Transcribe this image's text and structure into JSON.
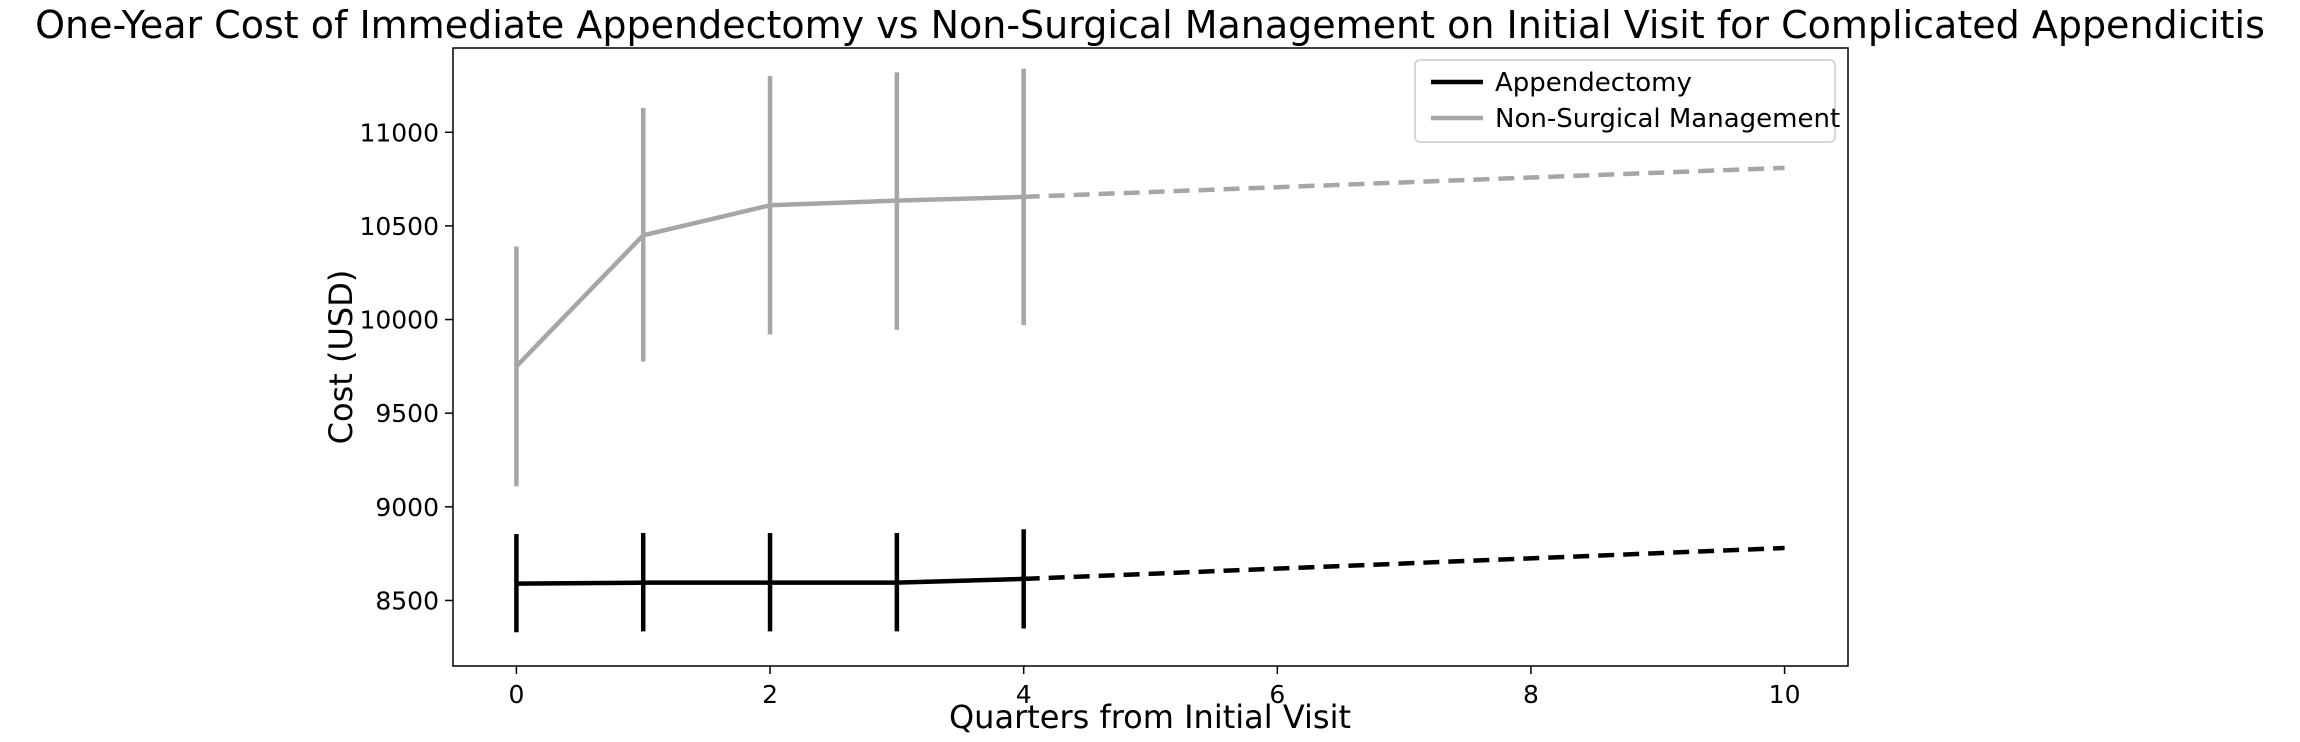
{
  "chart_data": {
    "type": "line",
    "title": "One-Year Cost of Immediate Appendectomy vs Non-Surgical Management on Initial Visit for Complicated Appendicitis",
    "xlabel": "Quarters from Initial Visit",
    "ylabel": "Cost (USD)",
    "xlim": [
      -0.5,
      10.5
    ],
    "ylim": [
      8150,
      11450
    ],
    "x_ticks": [
      0,
      2,
      4,
      6,
      8,
      10
    ],
    "y_ticks": [
      8500,
      9000,
      9500,
      10000,
      10500,
      11000
    ],
    "grid": false,
    "legend_position": "top-right",
    "series": [
      {
        "name": "Appendectomy",
        "color": "#000000",
        "x": [
          0,
          1,
          2,
          3,
          4
        ],
        "y": [
          8590,
          8595,
          8595,
          8595,
          8615
        ],
        "error_low": [
          8330,
          8335,
          8335,
          8335,
          8350
        ],
        "error_high": [
          8855,
          8860,
          8860,
          8860,
          8880
        ],
        "projection": {
          "style": "dashed",
          "x": [
            4,
            10
          ],
          "y": [
            8615,
            8780
          ]
        }
      },
      {
        "name": "Non-Surgical Management",
        "color": "#a6a6a6",
        "x": [
          0,
          1,
          2,
          3,
          4
        ],
        "y": [
          9750,
          10450,
          10610,
          10635,
          10655
        ],
        "error_low": [
          9110,
          9775,
          9920,
          9945,
          9970
        ],
        "error_high": [
          10390,
          11130,
          11300,
          11320,
          11340
        ],
        "projection": {
          "style": "dashed",
          "x": [
            4,
            10
          ],
          "y": [
            10655,
            10810
          ]
        }
      }
    ]
  }
}
